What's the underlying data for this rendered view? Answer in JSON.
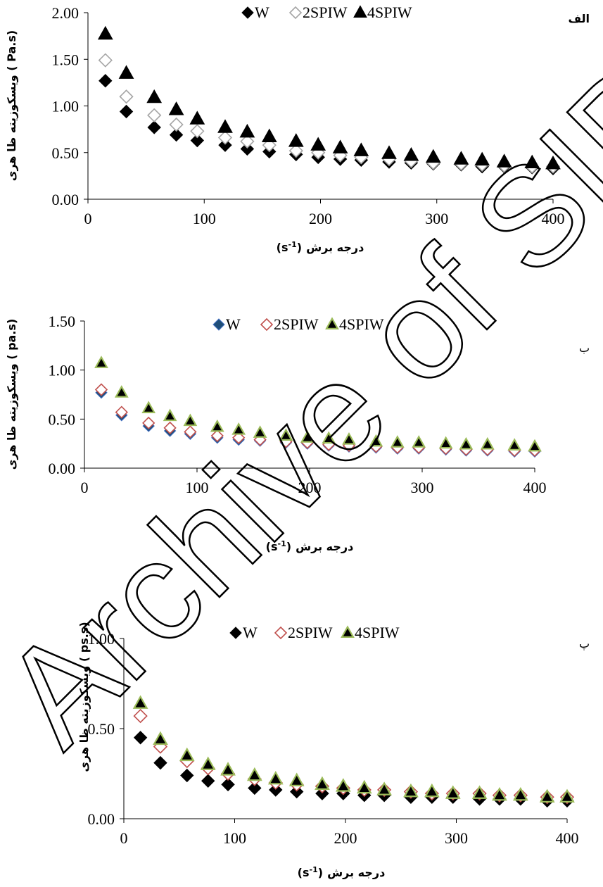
{
  "watermark": "Archive of SID",
  "chart_data": [
    {
      "type": "scatter",
      "panel_label": "الف",
      "xlabel": "درجه برش",
      "xunit": "(s-1)",
      "ylabel": "ویسکوزیته ظا هری",
      "yunit": "( Pa.s)",
      "xlim": [
        0,
        400
      ],
      "ylim": [
        0,
        2
      ],
      "x_ticks": [
        0,
        100,
        200,
        300,
        400
      ],
      "y_ticks": [
        0,
        0.5,
        1,
        1.5,
        2
      ],
      "x_tick_labels": [
        "0",
        "100",
        "200",
        "300",
        "400"
      ],
      "y_tick_labels": [
        "0.00",
        "0.50",
        "1.00",
        "1.50",
        "2.00"
      ],
      "grid": false,
      "legend": "top",
      "x": [
        15,
        33,
        57,
        76,
        94,
        118,
        137,
        156,
        179,
        198,
        217,
        235,
        259,
        278,
        297,
        321,
        339,
        358,
        382,
        400
      ],
      "series": [
        {
          "name": "W",
          "marker": "diamond-filled",
          "values": [
            1.27,
            0.94,
            0.77,
            0.69,
            0.63,
            0.58,
            0.54,
            0.51,
            0.48,
            0.45,
            0.43,
            0.42,
            0.4,
            0.39,
            0.38,
            0.37,
            0.35,
            0.35,
            0.34,
            0.33
          ]
        },
        {
          "name": "2SPIW",
          "marker": "diamond-open",
          "values": [
            1.49,
            1.1,
            0.9,
            0.8,
            0.73,
            0.66,
            0.62,
            0.58,
            0.52,
            0.5,
            0.47,
            0.45,
            0.43,
            0.41,
            0.39,
            0.38,
            0.37,
            0.36,
            0.35,
            0.35
          ]
        },
        {
          "name": "4SPIW",
          "marker": "triangle-filled",
          "values": [
            1.77,
            1.35,
            1.09,
            0.96,
            0.86,
            0.77,
            0.72,
            0.67,
            0.62,
            0.58,
            0.55,
            0.52,
            0.49,
            0.47,
            0.45,
            0.43,
            0.42,
            0.4,
            0.39,
            0.38
          ]
        }
      ]
    },
    {
      "type": "scatter",
      "panel_label": "ب",
      "xlabel": "درجه برش",
      "xunit": "(s-1)",
      "ylabel": "ویسکوزیته ظا هری",
      "yunit": "( pa.s)",
      "xlim": [
        0,
        400
      ],
      "ylim": [
        0,
        1.5
      ],
      "x_ticks": [
        0,
        100,
        200,
        300,
        400
      ],
      "y_ticks": [
        0,
        0.5,
        1,
        1.5
      ],
      "x_tick_labels": [
        "0",
        "100",
        "200",
        "300",
        "400"
      ],
      "y_tick_labels": [
        "0.00",
        "0.50",
        "1.00",
        "1.50"
      ],
      "grid": false,
      "legend": "top",
      "x": [
        15,
        33,
        57,
        76,
        94,
        118,
        137,
        156,
        179,
        198,
        217,
        235,
        259,
        278,
        297,
        321,
        339,
        358,
        382,
        400
      ],
      "series": [
        {
          "name": "W",
          "marker": "diamond-filled",
          "values": [
            0.77,
            0.54,
            0.43,
            0.38,
            0.35,
            0.31,
            0.29,
            0.28,
            0.26,
            0.25,
            0.23,
            0.22,
            0.21,
            0.2,
            0.2,
            0.19,
            0.18,
            0.18,
            0.17,
            0.17
          ]
        },
        {
          "name": "2SPIW",
          "marker": "diamond-open",
          "values": [
            0.8,
            0.57,
            0.46,
            0.41,
            0.37,
            0.33,
            0.31,
            0.29,
            0.27,
            0.26,
            0.24,
            0.23,
            0.22,
            0.21,
            0.21,
            0.2,
            0.19,
            0.19,
            0.18,
            0.18
          ]
        },
        {
          "name": "4SPIW",
          "marker": "triangle-filled",
          "values": [
            1.07,
            0.77,
            0.61,
            0.53,
            0.48,
            0.42,
            0.39,
            0.36,
            0.33,
            0.31,
            0.3,
            0.29,
            0.27,
            0.26,
            0.26,
            0.25,
            0.24,
            0.24,
            0.23,
            0.22
          ]
        }
      ]
    },
    {
      "type": "scatter",
      "panel_label": "پ",
      "xlabel": "درجه برش",
      "xunit": "(s-1)",
      "ylabel": "ویسکوزیته ظا هری",
      "yunit": "( ps.s)",
      "xlim": [
        0,
        400
      ],
      "ylim": [
        0,
        1
      ],
      "x_ticks": [
        0,
        100,
        200,
        300,
        400
      ],
      "y_ticks": [
        0,
        0.5,
        1
      ],
      "x_tick_labels": [
        "0",
        "100",
        "200",
        "300",
        "400"
      ],
      "y_tick_labels": [
        "0.00",
        "0.50",
        "1.00"
      ],
      "grid": false,
      "legend": "top",
      "x": [
        15,
        33,
        57,
        76,
        94,
        118,
        137,
        156,
        179,
        198,
        217,
        235,
        259,
        278,
        297,
        321,
        339,
        358,
        382,
        400
      ],
      "series": [
        {
          "name": "W",
          "marker": "diamond-filled",
          "values": [
            0.45,
            0.31,
            0.24,
            0.21,
            0.19,
            0.17,
            0.16,
            0.15,
            0.14,
            0.14,
            0.13,
            0.13,
            0.12,
            0.12,
            0.12,
            0.11,
            0.11,
            0.11,
            0.1,
            0.1
          ]
        },
        {
          "name": "2SPIW",
          "marker": "diamond-open",
          "values": [
            0.57,
            0.4,
            0.32,
            0.28,
            0.25,
            0.22,
            0.2,
            0.19,
            0.18,
            0.17,
            0.16,
            0.16,
            0.15,
            0.14,
            0.14,
            0.14,
            0.13,
            0.13,
            0.12,
            0.12
          ]
        },
        {
          "name": "4SPIW",
          "marker": "triangle-filled",
          "values": [
            0.64,
            0.44,
            0.35,
            0.3,
            0.27,
            0.24,
            0.22,
            0.21,
            0.19,
            0.18,
            0.17,
            0.16,
            0.15,
            0.15,
            0.14,
            0.14,
            0.13,
            0.13,
            0.12,
            0.12
          ]
        }
      ]
    }
  ]
}
